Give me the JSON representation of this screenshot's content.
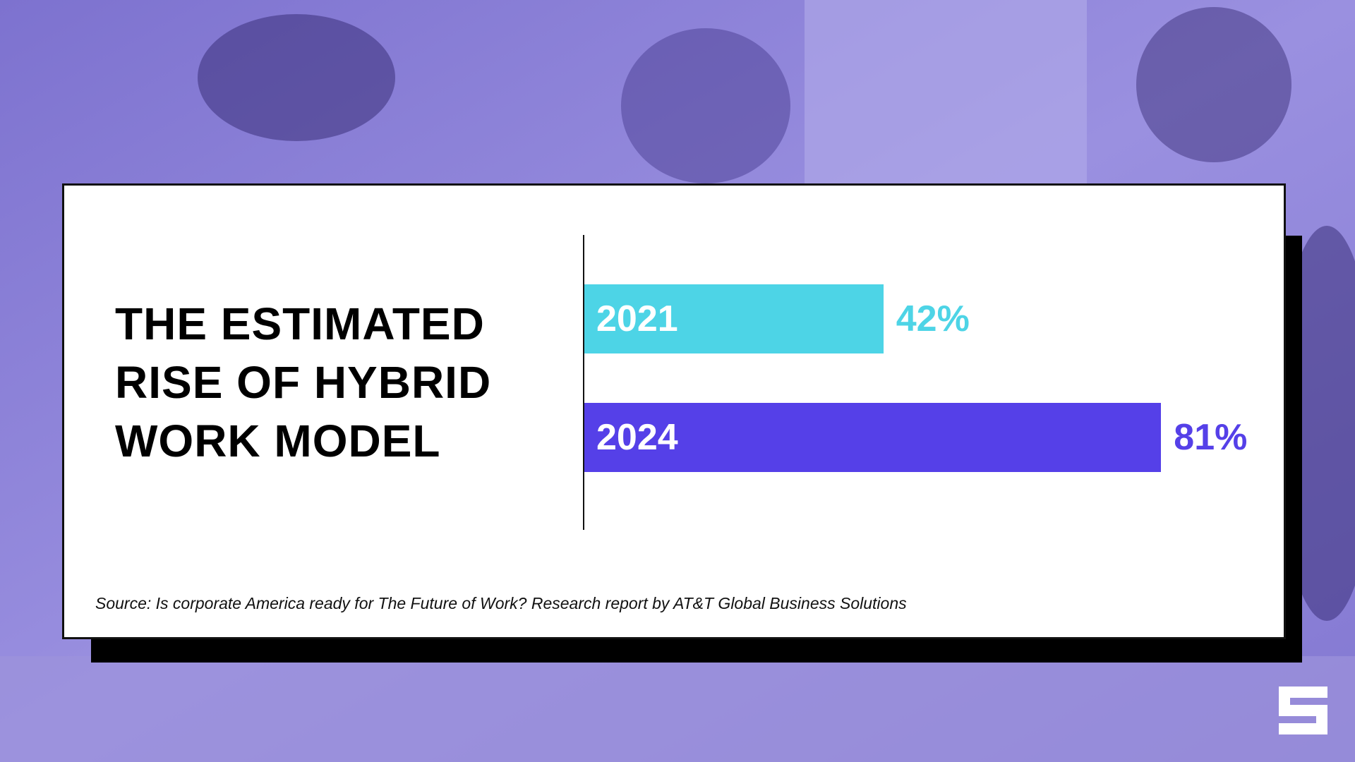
{
  "chart_data": {
    "type": "bar",
    "orientation": "horizontal",
    "title": "THE ESTIMATED RISE OF HYBRID WORK MODEL",
    "categories": [
      "2021",
      "2024"
    ],
    "values": [
      42,
      81
    ],
    "value_labels": [
      "42%",
      "81%"
    ],
    "colors": [
      "#4dd4e6",
      "#5540e8"
    ],
    "source": "Source: Is corporate America ready for The Future of Work? Research report by AT&T Global Business Solutions"
  }
}
